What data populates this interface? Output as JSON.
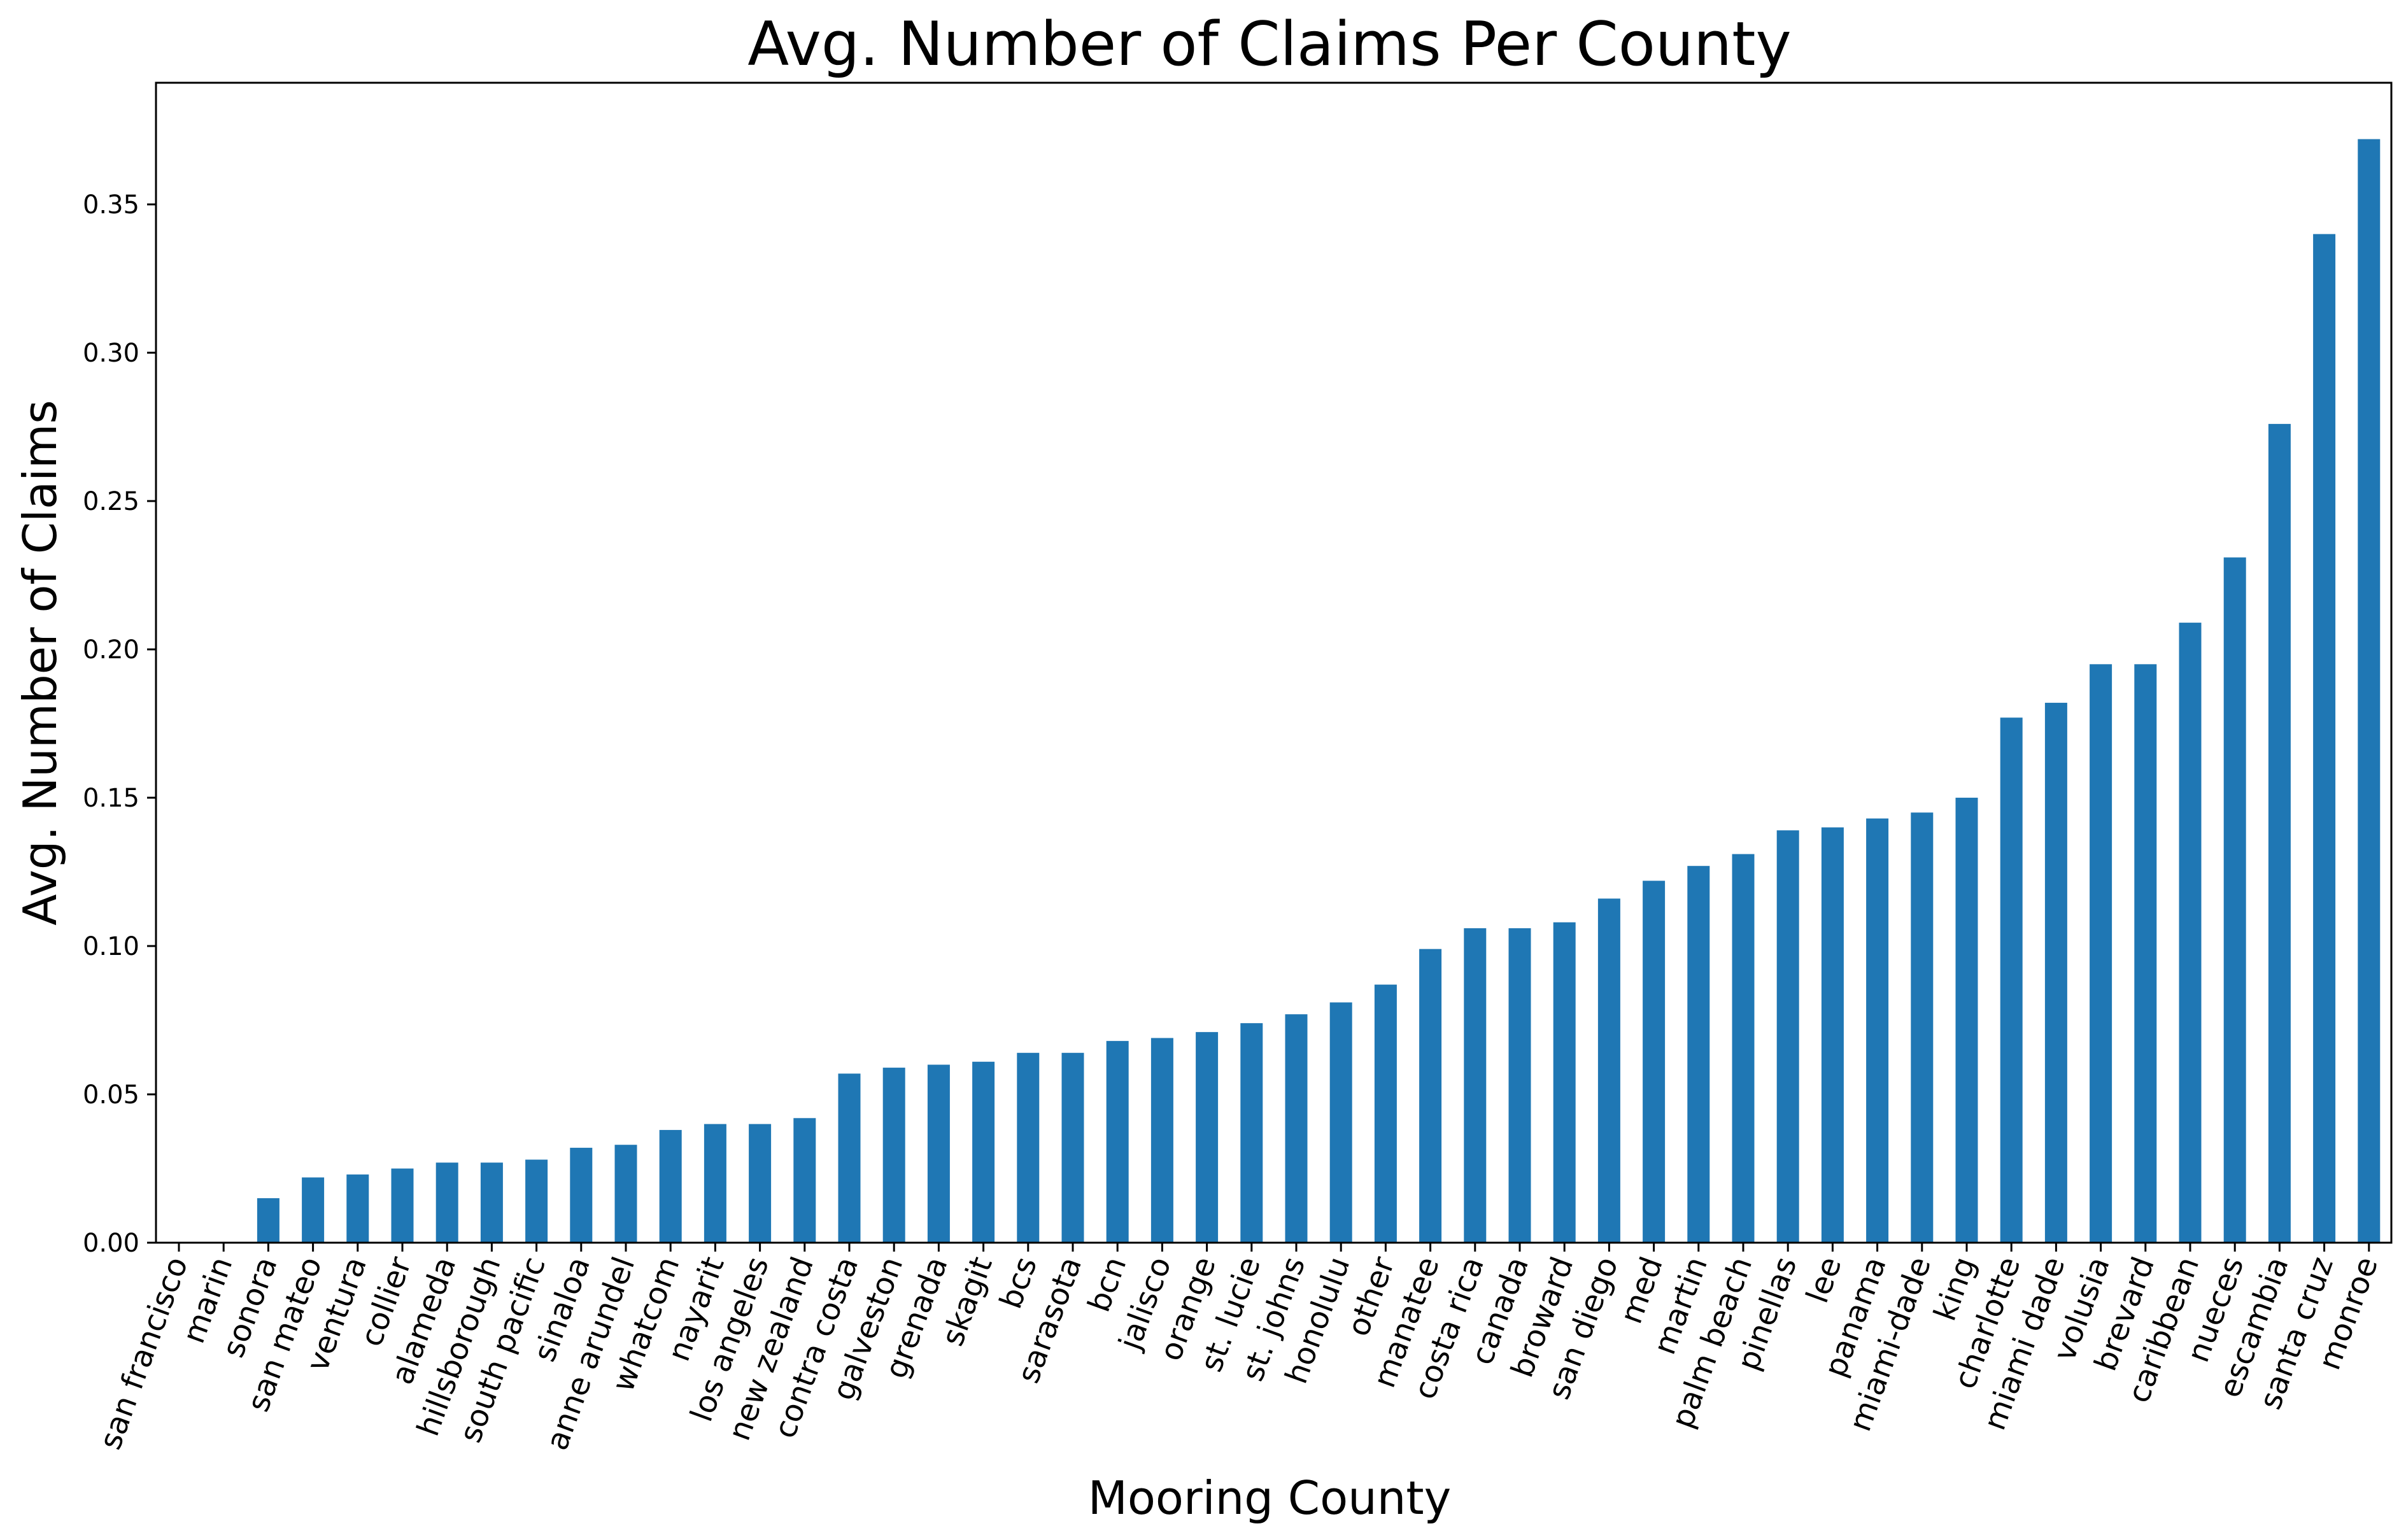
{
  "chart_data": {
    "type": "bar",
    "title": "Avg. Number of Claims Per County",
    "xlabel": "Mooring County",
    "ylabel": "Avg. Number of Claims",
    "ylim": [
      0,
      0.391
    ],
    "yticks": [
      "0.00",
      "0.05",
      "0.10",
      "0.15",
      "0.20",
      "0.25",
      "0.30",
      "0.35"
    ],
    "grid": false,
    "bar_color": "#1f77b4",
    "categories": [
      "san francisco",
      "marin",
      "sonora",
      "san mateo",
      "ventura",
      "collier",
      "alameda",
      "hillsborough",
      "south pacific",
      "sinaloa",
      "anne arundel",
      "whatcom",
      "nayarit",
      "los angeles",
      "new zealand",
      "contra costa",
      "galveston",
      "grenada",
      "skagit",
      "bcs",
      "sarasota",
      "bcn",
      "jalisco",
      "orange",
      "st. lucie",
      "st. johns",
      "honolulu",
      "other",
      "manatee",
      "costa rica",
      "canada",
      "broward",
      "san diego",
      "med",
      "martin",
      "palm beach",
      "pinellas",
      "lee",
      "panama",
      "miami-dade",
      "king",
      "charlotte",
      "miami dade",
      "volusia",
      "brevard",
      "caribbean",
      "nueces",
      "escambia",
      "santa cruz",
      "monroe"
    ],
    "values": [
      0.0,
      0.0,
      0.015,
      0.022,
      0.023,
      0.025,
      0.027,
      0.027,
      0.028,
      0.032,
      0.033,
      0.038,
      0.04,
      0.04,
      0.042,
      0.057,
      0.059,
      0.06,
      0.061,
      0.064,
      0.064,
      0.068,
      0.069,
      0.071,
      0.074,
      0.077,
      0.081,
      0.087,
      0.099,
      0.106,
      0.106,
      0.108,
      0.116,
      0.122,
      0.127,
      0.131,
      0.139,
      0.14,
      0.143,
      0.145,
      0.15,
      0.177,
      0.182,
      0.195,
      0.195,
      0.209,
      0.231,
      0.276,
      0.34,
      0.372
    ]
  }
}
